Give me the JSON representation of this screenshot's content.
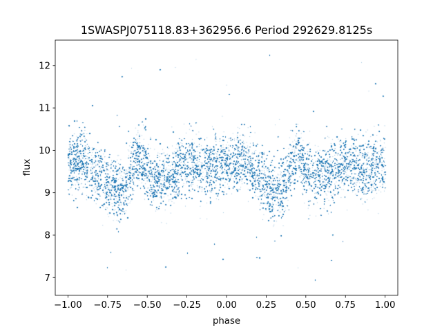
{
  "chart_data": {
    "type": "scatter",
    "title": "1SWASPJ075118.83+362956.6 Period 292629.8125s",
    "xlabel": "phase",
    "ylabel": "flux",
    "xlim": [
      -1.08,
      1.08
    ],
    "ylim": [
      6.58,
      12.6
    ],
    "grid": false,
    "legend": "none",
    "marker_color": "#1f77b4",
    "x_ticks": [
      {
        "value": -1.0,
        "label": "−1.00"
      },
      {
        "value": -0.75,
        "label": "−0.75"
      },
      {
        "value": -0.5,
        "label": "−0.50"
      },
      {
        "value": -0.25,
        "label": "−0.25"
      },
      {
        "value": 0.0,
        "label": "0.00"
      },
      {
        "value": 0.25,
        "label": "0.25"
      },
      {
        "value": 0.5,
        "label": "0.50"
      },
      {
        "value": 0.75,
        "label": "0.75"
      },
      {
        "value": 1.0,
        "label": "1.00"
      }
    ],
    "y_ticks": [
      {
        "value": 7,
        "label": "7"
      },
      {
        "value": 8,
        "label": "8"
      },
      {
        "value": 9,
        "label": "9"
      },
      {
        "value": 10,
        "label": "10"
      },
      {
        "value": 11,
        "label": "11"
      },
      {
        "value": 12,
        "label": "12"
      }
    ],
    "series": [
      {
        "description_of_trend_points": [
          [
            -1.0,
            9.6
          ],
          [
            -0.95,
            9.7
          ],
          [
            -0.9,
            9.8
          ],
          [
            -0.85,
            9.6
          ],
          [
            -0.8,
            9.4
          ],
          [
            -0.75,
            9.2
          ],
          [
            -0.7,
            9.05
          ],
          [
            -0.65,
            9.1
          ],
          [
            -0.6,
            9.6
          ],
          [
            -0.55,
            9.9
          ],
          [
            -0.5,
            9.5
          ],
          [
            -0.45,
            9.3
          ],
          [
            -0.4,
            9.35
          ],
          [
            -0.35,
            9.45
          ],
          [
            -0.3,
            9.6
          ],
          [
            -0.25,
            9.7
          ],
          [
            -0.2,
            9.65
          ],
          [
            -0.15,
            9.55
          ],
          [
            -0.1,
            9.6
          ],
          [
            -0.05,
            9.7
          ],
          [
            0.0,
            9.6
          ],
          [
            0.05,
            9.7
          ],
          [
            0.1,
            9.8
          ],
          [
            0.15,
            9.6
          ],
          [
            0.2,
            9.4
          ],
          [
            0.25,
            9.2
          ],
          [
            0.3,
            9.05
          ],
          [
            0.35,
            9.1
          ],
          [
            0.4,
            9.6
          ],
          [
            0.45,
            9.9
          ],
          [
            0.5,
            9.5
          ],
          [
            0.55,
            9.3
          ],
          [
            0.6,
            9.35
          ],
          [
            0.65,
            9.45
          ],
          [
            0.7,
            9.6
          ],
          [
            0.75,
            9.7
          ],
          [
            0.8,
            9.65
          ],
          [
            0.85,
            9.55
          ],
          [
            0.9,
            9.6
          ],
          [
            0.95,
            9.7
          ],
          [
            1.0,
            9.6
          ]
        ],
        "scatter_sd": 0.35,
        "outlier_range": [
          6.85,
          12.3
        ],
        "point_count": 60000
      }
    ]
  }
}
